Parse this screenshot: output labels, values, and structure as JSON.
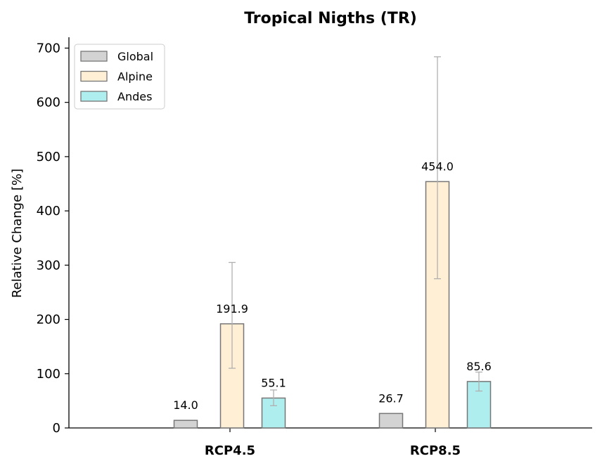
{
  "chart_data": {
    "type": "bar",
    "title": "Tropical Nigths (TR)",
    "xlabel": "",
    "ylabel": "Relative Change [%]",
    "categories": [
      "RCP4.5",
      "RCP8.5"
    ],
    "ylim": [
      0,
      720
    ],
    "yticks": [
      "0",
      "100",
      "200",
      "300",
      "400",
      "500",
      "600",
      "700"
    ],
    "ytick_values": [
      0,
      100,
      200,
      300,
      400,
      500,
      600,
      700
    ],
    "legend_position": "upper-left",
    "grid": false,
    "series": [
      {
        "name": "Global",
        "color": "#d3d3d3",
        "values": [
          14.0,
          26.7
        ],
        "labels": [
          "14.0",
          "26.7"
        ],
        "error_low": [
          null,
          null
        ],
        "error_high": [
          null,
          null
        ]
      },
      {
        "name": "Alpine",
        "color": "#ffefd5",
        "values": [
          191.9,
          454.0
        ],
        "labels": [
          "191.9",
          "454.0"
        ],
        "error_low": [
          110,
          275
        ],
        "error_high": [
          305,
          684
        ]
      },
      {
        "name": "Andes",
        "color": "#afeeee",
        "values": [
          55.1,
          85.6
        ],
        "labels": [
          "55.1",
          "85.6"
        ],
        "error_low": [
          41,
          68
        ],
        "error_high": [
          70,
          103
        ]
      }
    ],
    "edge_color": "#777777",
    "error_color": "#b0b0b0"
  }
}
